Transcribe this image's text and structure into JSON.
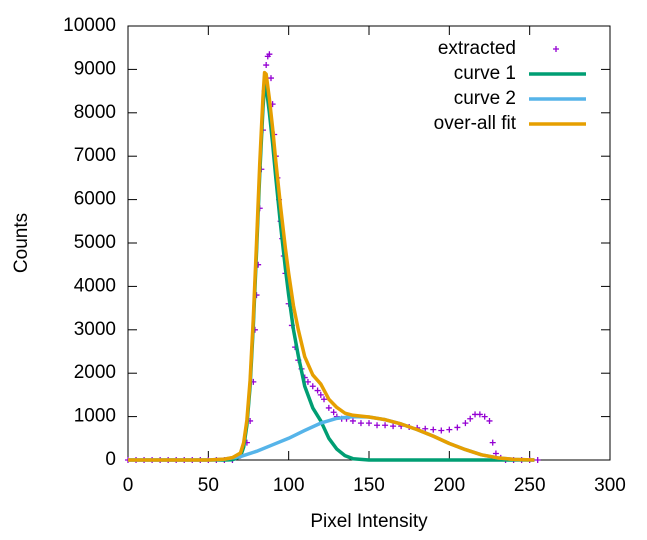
{
  "chart_data": {
    "type": "line",
    "xlabel": "Pixel Intensity",
    "ylabel": "Counts",
    "xlim": [
      0,
      300
    ],
    "xticks": [
      0,
      50,
      100,
      150,
      200,
      250,
      300
    ],
    "ylim": [
      0,
      10000
    ],
    "yticks": [
      0,
      1000,
      2000,
      3000,
      4000,
      5000,
      6000,
      7000,
      8000,
      9000,
      10000
    ],
    "legend": "top right",
    "series": [
      {
        "name": "extracted",
        "color": "#9400d3",
        "mode": "points",
        "x": [
          0,
          5,
          10,
          15,
          20,
          25,
          30,
          35,
          40,
          45,
          50,
          55,
          60,
          65,
          70,
          74,
          76,
          78,
          79,
          80,
          81,
          82,
          83,
          84,
          85,
          86,
          87,
          88,
          89,
          90,
          91,
          92,
          93,
          94,
          95,
          96,
          97,
          98,
          100,
          102,
          104,
          106,
          108,
          110,
          112,
          115,
          118,
          120,
          122,
          125,
          128,
          130,
          133,
          136,
          140,
          145,
          150,
          155,
          160,
          165,
          170,
          175,
          180,
          185,
          190,
          195,
          200,
          205,
          210,
          213,
          216,
          219,
          222,
          225,
          227,
          229,
          232,
          235,
          240,
          245,
          250,
          255
        ],
        "values": [
          0,
          0,
          0,
          0,
          0,
          0,
          0,
          0,
          0,
          0,
          0,
          0,
          0,
          0,
          100,
          400,
          900,
          1800,
          3000,
          3800,
          4500,
          5800,
          6700,
          7600,
          8500,
          9100,
          9300,
          9350,
          8800,
          8200,
          7500,
          7000,
          6500,
          6000,
          5500,
          5100,
          4700,
          4300,
          3600,
          3100,
          2600,
          2300,
          2100,
          1900,
          1800,
          1700,
          1600,
          1500,
          1400,
          1200,
          1100,
          1000,
          950,
          950,
          900,
          850,
          850,
          800,
          800,
          780,
          780,
          760,
          740,
          720,
          700,
          680,
          700,
          750,
          850,
          950,
          1050,
          1050,
          1000,
          900,
          400,
          150,
          50,
          0,
          0,
          0,
          0,
          0
        ]
      },
      {
        "name": "curve 1",
        "color": "#009e73",
        "mode": "lines",
        "x": [
          0,
          60,
          65,
          70,
          72,
          74,
          76,
          78,
          80,
          82,
          84,
          85,
          86,
          88,
          90,
          92,
          95,
          98,
          100,
          103,
          106,
          110,
          115,
          120,
          125,
          130,
          135,
          140,
          150,
          253
        ],
        "values": [
          0,
          0,
          5,
          80,
          300,
          800,
          1700,
          3100,
          4800,
          6600,
          8100,
          8650,
          8600,
          8000,
          7300,
          6500,
          5400,
          4400,
          3800,
          3000,
          2400,
          1700,
          1200,
          900,
          500,
          250,
          100,
          30,
          0,
          0
        ]
      },
      {
        "name": "curve 2",
        "color": "#56b4e9",
        "mode": "lines",
        "x": [
          0,
          50,
          60,
          70,
          80,
          90,
          100,
          110,
          120,
          130,
          140,
          150,
          160,
          170,
          180,
          190,
          200,
          210,
          220,
          230,
          240,
          253
        ],
        "values": [
          0,
          0,
          20,
          80,
          200,
          350,
          500,
          680,
          850,
          960,
          1000,
          990,
          930,
          830,
          700,
          550,
          380,
          240,
          120,
          50,
          15,
          0
        ]
      },
      {
        "name": "over-all fit",
        "color": "#e69f00",
        "mode": "lines",
        "x": [
          0,
          50,
          60,
          65,
          70,
          72,
          74,
          76,
          78,
          80,
          82,
          84,
          85,
          86,
          88,
          90,
          92,
          95,
          98,
          100,
          103,
          106,
          110,
          115,
          120,
          125,
          130,
          135,
          140,
          150,
          160,
          170,
          180,
          190,
          200,
          210,
          220,
          230,
          240,
          253
        ],
        "values": [
          0,
          0,
          20,
          55,
          160,
          400,
          920,
          1840,
          3270,
          5000,
          6830,
          8360,
          8925,
          8890,
          8320,
          7650,
          6880,
          5825,
          4870,
          4300,
          3550,
          3000,
          2380,
          1960,
          1750,
          1400,
          1210,
          1080,
          1030,
          990,
          930,
          830,
          700,
          550,
          380,
          240,
          120,
          50,
          15,
          0
        ]
      }
    ]
  }
}
